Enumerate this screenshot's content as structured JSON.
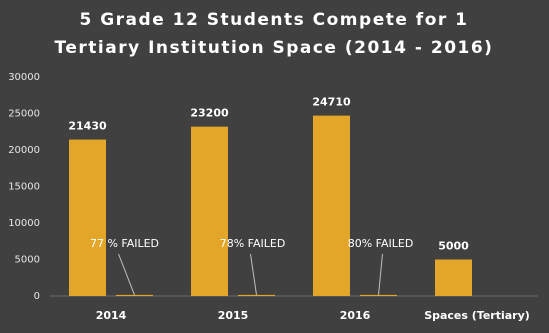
{
  "chart_data": {
    "type": "bar",
    "title": [
      "5 Grade 12 Students Compete for 1",
      "Tertiary Institution Space (2014 - 2016)"
    ],
    "categories": [
      "2014",
      "2015",
      "2016",
      "Spaces (Tertiary)"
    ],
    "series": [
      {
        "color": "#e3a629",
        "values": [
          21430,
          23200,
          24710,
          5000
        ]
      },
      {
        "color": "#e3a629",
        "values": [
          150,
          150,
          150,
          null
        ]
      }
    ],
    "annotations": [
      "77 % FAILED",
      "78% FAILED",
      "80% FAILED"
    ],
    "ylim": [
      0,
      30000
    ],
    "yticks": [
      0,
      5000,
      10000,
      15000,
      20000,
      25000,
      30000
    ],
    "grid": false
  }
}
